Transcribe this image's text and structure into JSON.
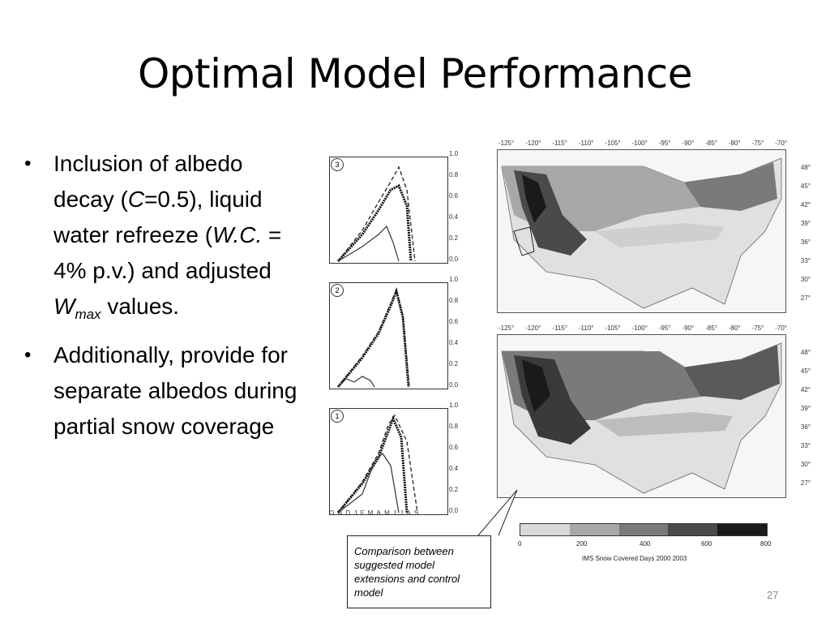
{
  "slide": {
    "title": "Optimal Model Performance",
    "page_number": "27"
  },
  "bullets": {
    "b1_a": "Inclusion of albedo decay (",
    "b1_c": "C",
    "b1_b": "=0.5), liquid water refreeze (",
    "b1_wc": "W.C.",
    "b1_d": " = 4% p.v.) and adjusted ",
    "b1_w": "W",
    "b1_max": "max",
    "b1_e": " values.",
    "b2": "Additionally, provide for separate albedos during partial snow coverage"
  },
  "panels": {
    "labels": [
      "3",
      "2",
      "1"
    ],
    "y_ticks": [
      "1.0",
      "0.8",
      "0.6",
      "0.4",
      "0.2",
      "0.0"
    ],
    "months": "ONDJFMAMJJAS"
  },
  "maps": {
    "lon_ticks": [
      "-125°",
      "-120°",
      "-115°",
      "-110°",
      "-105°",
      "-100°",
      "-95°",
      "-90°",
      "-85°",
      "-80°",
      "-75°",
      "-70°"
    ],
    "lat_ticks": [
      "48°",
      "45°",
      "42°",
      "39°",
      "36°",
      "33°",
      "30°",
      "27°"
    ]
  },
  "legend": {
    "ticks": [
      "0",
      "200",
      "400",
      "600",
      "800"
    ],
    "label": "IMS Snow Covered Days 2000 2003",
    "colors": [
      "#d9d9d9",
      "#a8a8a8",
      "#7a7a7a",
      "#4a4a4a",
      "#1a1a1a"
    ]
  },
  "callout": {
    "text": "Comparison between suggested model extensions and control model"
  }
}
